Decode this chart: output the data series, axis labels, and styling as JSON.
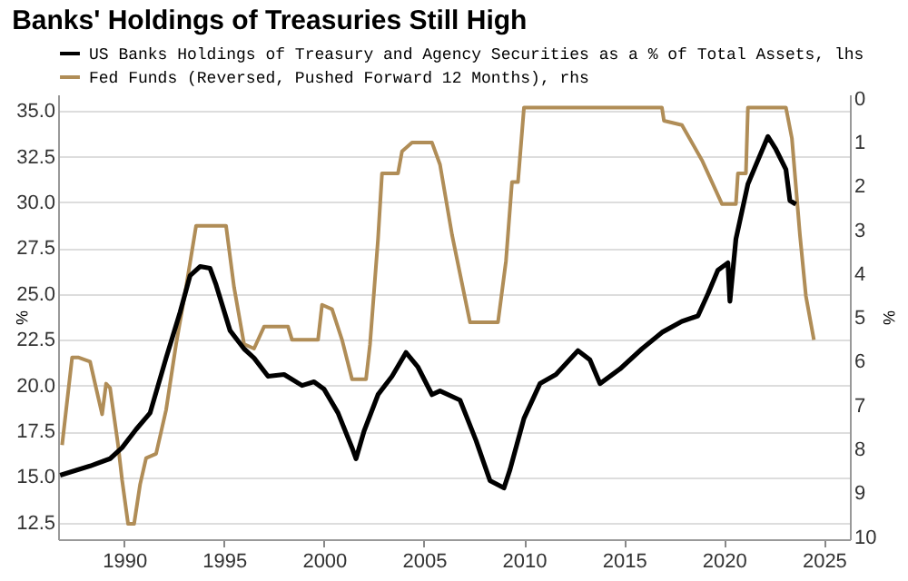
{
  "chart_data": {
    "type": "line",
    "title": "Banks' Holdings of Treasuries Still High",
    "ylabel": "%",
    "y2label": "%",
    "xlim": [
      1986.7,
      2026.3
    ],
    "xticks": [
      1990,
      1995,
      2000,
      2005,
      2010,
      2015,
      2020,
      2025
    ],
    "ylim": [
      11.6,
      35.9
    ],
    "yticks": [
      {
        "value": 12.5,
        "label": "12.5"
      },
      {
        "value": 15,
        "label": "15.0"
      },
      {
        "value": 17.5,
        "label": "17.5"
      },
      {
        "value": 20,
        "label": "20.0"
      },
      {
        "value": 22.5,
        "label": "22.5"
      },
      {
        "value": 25,
        "label": "25.0"
      },
      {
        "value": 27.5,
        "label": "27.5"
      },
      {
        "value": 30,
        "label": "30.0"
      },
      {
        "value": 32.5,
        "label": "32.5"
      },
      {
        "value": 35,
        "label": "35.0"
      }
    ],
    "y2lim": [
      10.05,
      -0.1
    ],
    "y2ticks": [
      0,
      1,
      2,
      3,
      4,
      5,
      6,
      7,
      8,
      9,
      10
    ],
    "grid": "y",
    "legend": "top left",
    "line_style": "solid",
    "series": [
      {
        "name": "US Banks Holdings of Treasury and Agency Securities as a % of Total Assets, lhs",
        "color": "#000000",
        "x": [
          1986.8,
          1988.3,
          1989.3,
          1989.9,
          1990.6,
          1991.3,
          1992.1,
          1992.8,
          1993.3,
          1993.8,
          1994.3,
          1994.6,
          1995.3,
          1996.0,
          1996.5,
          1997.2,
          1998.0,
          1998.9,
          1999.5,
          2000.0,
          2000.7,
          2001.4,
          2001.6,
          2002.0,
          2002.7,
          2003.4,
          2004.1,
          2004.7,
          2005.4,
          2005.8,
          2006.8,
          2007.6,
          2008.3,
          2009.0,
          2009.3,
          2010.0,
          2010.8,
          2011.6,
          2012.7,
          2013.3,
          2013.8,
          2014.8,
          2015.9,
          2016.9,
          2017.9,
          2018.7,
          2019.2,
          2019.7,
          2020.2,
          2020.3,
          2020.6,
          2021.2,
          2021.7,
          2022.2,
          2022.6,
          2023.1,
          2023.3,
          2023.6
        ],
        "values": [
          15.1,
          15.6,
          16.0,
          16.6,
          17.6,
          18.5,
          21.5,
          24.0,
          26.0,
          26.5,
          26.4,
          25.5,
          23.0,
          22.0,
          21.5,
          20.5,
          20.6,
          20.0,
          20.2,
          19.8,
          18.5,
          16.6,
          16.0,
          17.5,
          19.5,
          20.5,
          21.8,
          21.0,
          19.5,
          19.7,
          19.2,
          17.0,
          14.8,
          14.4,
          15.4,
          18.2,
          20.1,
          20.6,
          21.9,
          21.4,
          20.1,
          20.9,
          22.0,
          22.9,
          23.5,
          23.8,
          25.0,
          26.3,
          26.7,
          24.6,
          28.0,
          31.0,
          32.3,
          33.6,
          32.9,
          31.8,
          30.1,
          29.9
        ]
      },
      {
        "name": "Fed Funds (Reversed, Pushed Forward 12 Months), rhs",
        "color": "#b08d57",
        "axis": "y2",
        "x": [
          1986.9,
          1987.4,
          1987.7,
          1988.3,
          1988.6,
          1988.9,
          1989.1,
          1989.3,
          1989.7,
          1989.9,
          1990.2,
          1990.5,
          1990.8,
          1991.1,
          1991.6,
          1992.1,
          1992.6,
          1993.1,
          1993.6,
          1995.1,
          1995.5,
          1996.0,
          1996.5,
          1997.0,
          1998.2,
          1998.4,
          1999.7,
          1999.9,
          2000.4,
          2000.9,
          2001.4,
          2002.1,
          2002.3,
          2002.7,
          2002.9,
          2003.7,
          2003.9,
          2004.4,
          2005.4,
          2005.8,
          2006.4,
          2007.3,
          2008.7,
          2009.1,
          2009.4,
          2009.7,
          2010.0,
          2016.9,
          2017.0,
          2017.9,
          2018.9,
          2019.9,
          2020.6,
          2020.7,
          2021.1,
          2021.2,
          2023.1,
          2023.4,
          2023.8,
          2024.1,
          2024.5
        ],
        "values": [
          7.9,
          5.9,
          5.9,
          6.0,
          6.6,
          7.2,
          6.5,
          6.6,
          7.9,
          8.7,
          9.7,
          9.7,
          8.8,
          8.2,
          8.1,
          7.1,
          5.6,
          4.3,
          2.9,
          2.9,
          4.3,
          5.6,
          5.7,
          5.2,
          5.2,
          5.5,
          5.5,
          4.7,
          4.8,
          5.5,
          6.4,
          6.4,
          5.6,
          3.2,
          1.7,
          1.7,
          1.2,
          1.0,
          1.0,
          1.5,
          3.1,
          5.1,
          5.1,
          3.7,
          1.9,
          1.9,
          0.2,
          0.2,
          0.5,
          0.6,
          1.4,
          2.4,
          2.4,
          1.7,
          1.7,
          0.2,
          0.2,
          0.9,
          3.1,
          4.5,
          5.5
        ]
      }
    ]
  }
}
